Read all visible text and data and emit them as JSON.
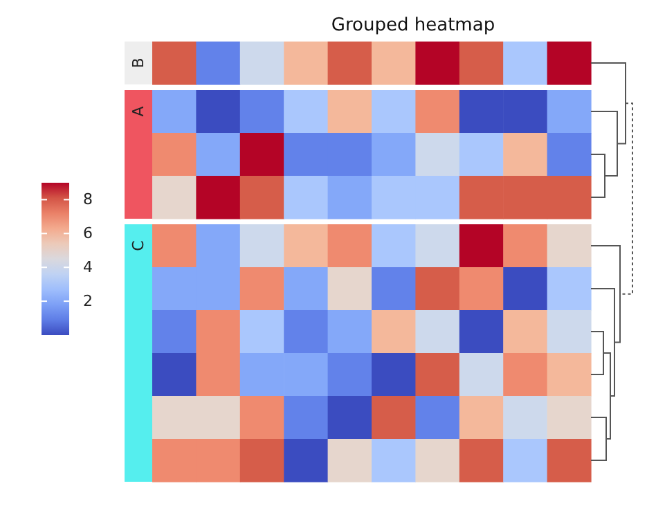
{
  "chart_data": {
    "type": "heatmap",
    "title": "Grouped heatmap",
    "clim": [
      0,
      9
    ],
    "cticks": [
      2,
      4,
      6,
      8
    ],
    "categories": [
      null,
      null,
      null,
      null,
      null,
      null,
      null,
      null,
      null,
      null
    ],
    "y_categories": [
      "B",
      "A",
      null,
      null,
      "C",
      null,
      null,
      null,
      null,
      null
    ],
    "cells": [
      [
        8,
        1,
        4,
        6,
        8,
        6,
        9,
        8,
        3,
        9
      ],
      [
        2,
        0,
        1,
        3,
        6,
        3,
        7,
        0,
        0,
        2
      ],
      [
        7,
        2,
        9,
        1,
        1,
        2,
        4,
        3,
        6,
        1
      ],
      [
        5,
        9,
        8,
        3,
        2,
        3,
        3,
        8,
        8,
        8
      ],
      [
        7,
        2,
        4,
        6,
        7,
        3,
        4,
        9,
        7,
        5
      ],
      [
        2,
        2,
        7,
        2,
        5,
        1,
        8,
        7,
        0,
        3
      ],
      [
        1,
        7,
        3,
        1,
        2,
        6,
        4,
        0,
        6,
        4
      ],
      [
        0,
        7,
        2,
        2,
        1,
        0,
        8,
        4,
        7,
        6
      ],
      [
        5,
        5,
        7,
        1,
        0,
        8,
        1,
        6,
        4,
        5
      ],
      [
        7,
        7,
        8,
        0,
        5,
        3,
        5,
        8,
        3,
        8
      ]
    ]
  }
}
